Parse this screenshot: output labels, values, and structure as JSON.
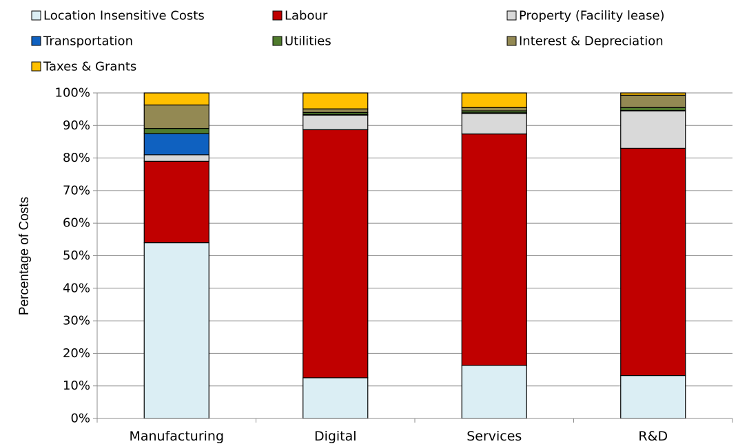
{
  "chart_data": {
    "type": "bar",
    "stacked": true,
    "percent": true,
    "title": "",
    "xlabel": "",
    "ylabel": "Percentage of Costs",
    "ylim": [
      0,
      100
    ],
    "yticks": [
      "0%",
      "10%",
      "20%",
      "30%",
      "40%",
      "50%",
      "60%",
      "70%",
      "80%",
      "90%",
      "100%"
    ],
    "grid": true,
    "legend_position": "top",
    "categories": [
      "Manufacturing",
      "Digital",
      "Services",
      "R&D"
    ],
    "series": [
      {
        "name": "Location Insensitive Costs",
        "color": "#dbeef4",
        "values": [
          54,
          12.5,
          16.3,
          13.2
        ]
      },
      {
        "name": "Labour",
        "color": "#c00000",
        "values": [
          25,
          76.2,
          71.1,
          69.8
        ]
      },
      {
        "name": "Property (Facility lease)",
        "color": "#d9d9d9",
        "values": [
          2,
          4.5,
          6.3,
          11.5
        ]
      },
      {
        "name": "Transportation",
        "color": "#0f61c0",
        "values": [
          6.5,
          0.2,
          0.2,
          0.1
        ]
      },
      {
        "name": "Utilities",
        "color": "#4f7b2d",
        "values": [
          1.6,
          0.6,
          0.6,
          0.9
        ]
      },
      {
        "name": "Interest & Depreciation",
        "color": "#938953",
        "values": [
          7.2,
          1.1,
          1.0,
          3.8
        ]
      },
      {
        "name": "Taxes & Grants",
        "color": "#ffc000",
        "values": [
          3.7,
          4.9,
          4.5,
          0.7
        ]
      }
    ]
  }
}
